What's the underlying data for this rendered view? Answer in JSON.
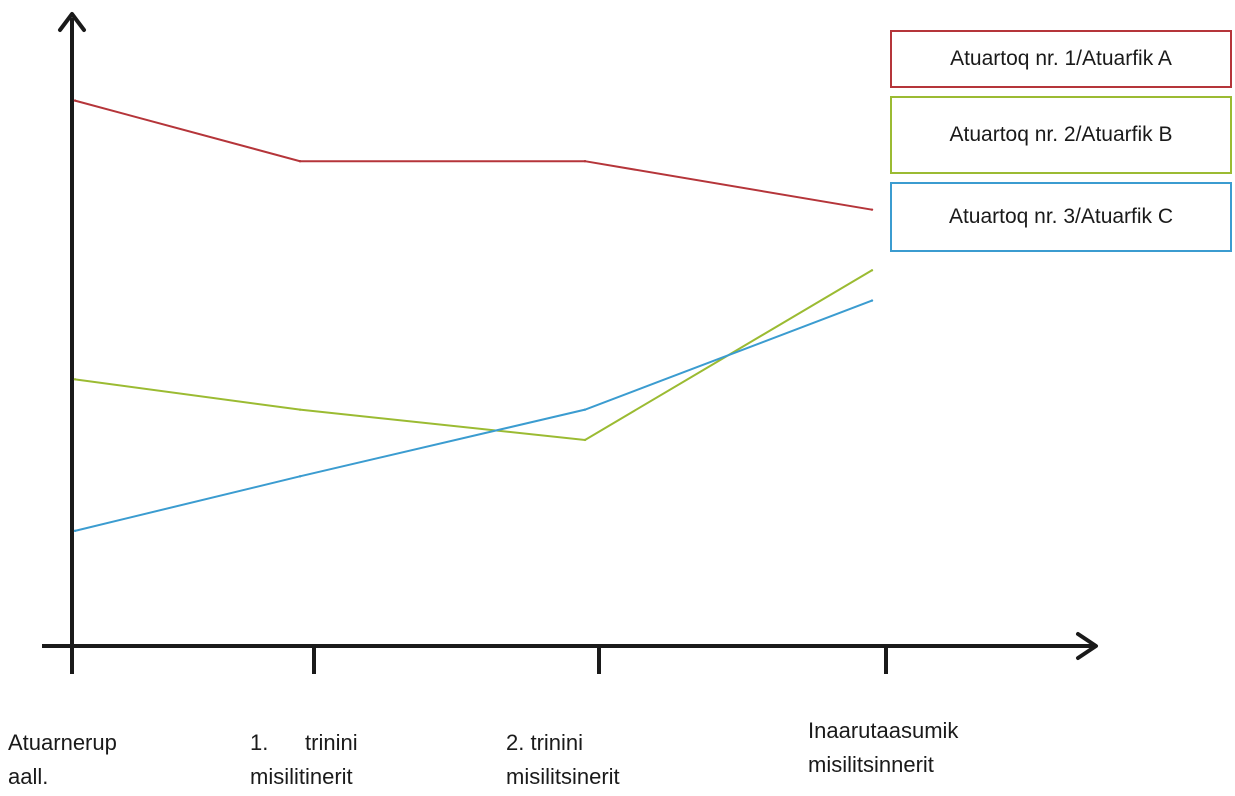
{
  "chart_data": {
    "type": "line",
    "categories": [
      "Atuarnerup aall.",
      "1. trinini misilitinerit",
      "2. trinini misilitsinerit",
      "Inaarutaasumik misilitsinnerit"
    ],
    "category_lines": [
      [
        "Atuarnerup",
        "aall."
      ],
      [
        "1.      trinini",
        "misilitinerit"
      ],
      [
        "2. trinini",
        "misilitsinerit"
      ],
      [
        "Inaarutaasumik",
        "misilitsinnerit"
      ]
    ],
    "series": [
      {
        "name": "Atuartoq nr. 1/Atuarfik A",
        "color": "#b5353a",
        "values": [
          90,
          80,
          80,
          72
        ]
      },
      {
        "name": "Atuartoq nr. 2/Atuarfik B",
        "color": "#9bbb32",
        "values": [
          44,
          39,
          34,
          62
        ]
      },
      {
        "name": "Atuartoq nr. 3/Atuarfik C",
        "color": "#3b9cd0",
        "values": [
          19,
          28,
          39,
          57
        ]
      }
    ],
    "ylim": [
      0,
      100
    ],
    "legend_position": "top-right",
    "grid": false
  }
}
